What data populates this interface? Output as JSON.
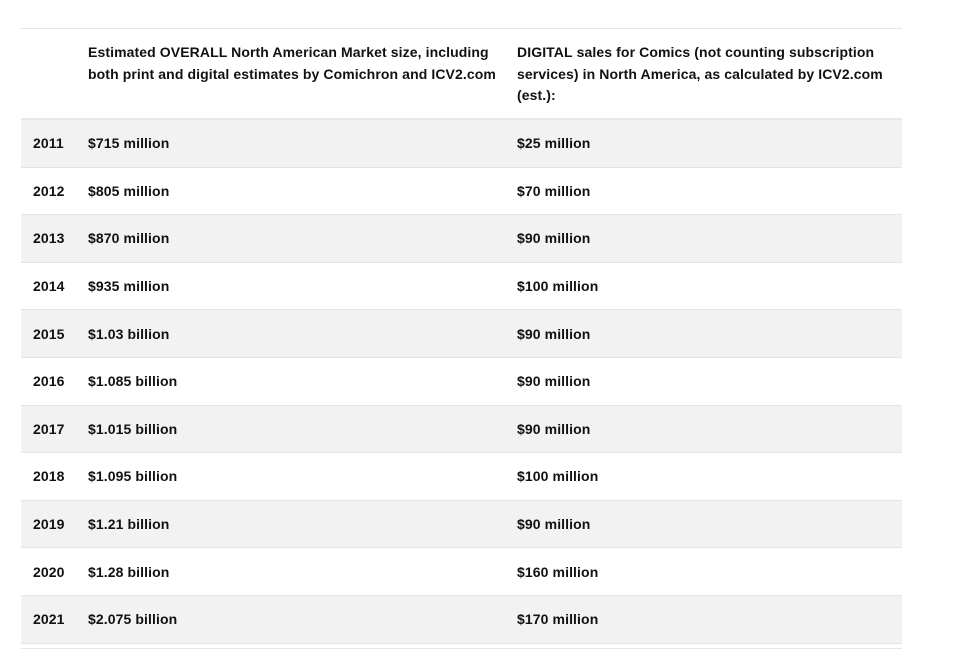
{
  "table": {
    "header": {
      "year": "",
      "overall_lead": "Estimated OVERALL North American Market size,",
      "overall_rest": "including both print and digital estimates by Comichron and ICV2.com",
      "digital_lead": "DIGITAL",
      "digital_rest": " sales for Comics (not counting subscription services) in North America, as calculated by ICV2.com (est.):"
    },
    "rows": [
      {
        "year": "2011",
        "overall": "$715 million",
        "digital": "$25 million"
      },
      {
        "year": "2012",
        "overall": "$805 million",
        "digital": "$70 million"
      },
      {
        "year": "2013",
        "overall": "$870 million",
        "digital": "$90 million"
      },
      {
        "year": "2014",
        "overall": "$935 million",
        "digital": "$100 million"
      },
      {
        "year": "2015",
        "overall": "$1.03 billion",
        "digital": "$90 million"
      },
      {
        "year": "2016",
        "overall": "$1.085 billion",
        "digital": "$90 million"
      },
      {
        "year": "2017",
        "overall": "$1.015 billion",
        "digital": "$90 million"
      },
      {
        "year": "2018",
        "overall": "$1.095 billion",
        "digital": "$100 million"
      },
      {
        "year": "2019",
        "overall": "$1.21 billion",
        "digital": "$90 million"
      },
      {
        "year": "2020",
        "overall": "$1.28 billion",
        "digital": "$160 million"
      },
      {
        "year": "2021",
        "overall": "$2.075 billion",
        "digital": "$170 million"
      }
    ]
  },
  "colors": {
    "shaded_row": "#f2f2f2",
    "plain_row": "#ffffff",
    "rule": "#e6e6e6",
    "text": "#111111"
  }
}
